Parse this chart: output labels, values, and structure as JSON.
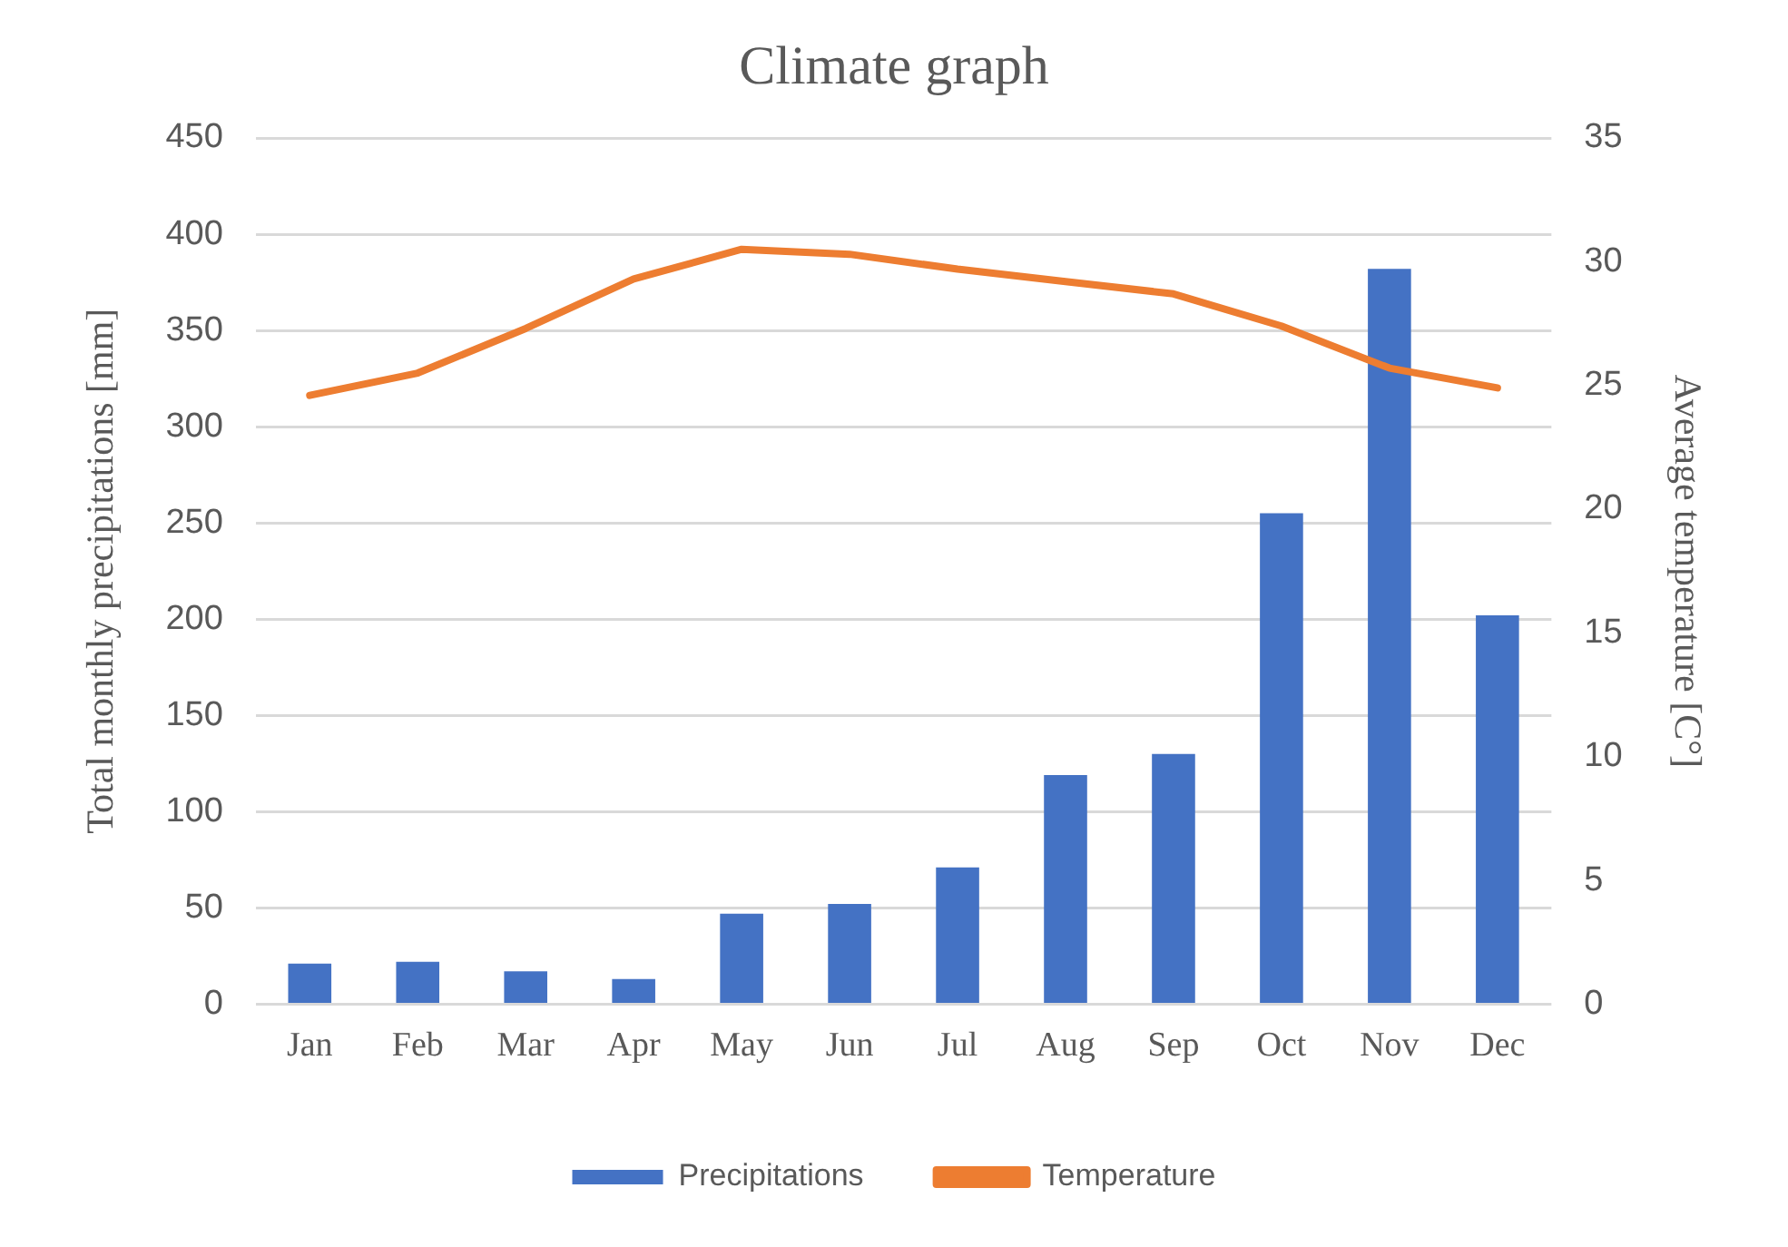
{
  "chart_data": {
    "type": "bar",
    "title": "Climate graph",
    "ylabel": "Total monthly precipitations [mm]",
    "y2label": "Average temperature [C°]",
    "categories": [
      "Jan",
      "Feb",
      "Mar",
      "Apr",
      "May",
      "Jun",
      "Jul",
      "Aug",
      "Sep",
      "Oct",
      "Nov",
      "Dec"
    ],
    "series": [
      {
        "name": "Precipitations",
        "color": "#4472c4",
        "values": [
          21,
          22,
          17,
          13,
          47,
          52,
          71,
          119,
          130,
          255,
          382,
          202
        ]
      },
      {
        "name": "Temperature",
        "type": "line",
        "axis": "y2",
        "color": "#ed7d31",
        "values": [
          24.6,
          25.5,
          27.3,
          29.3,
          30.5,
          30.3,
          29.7,
          29.2,
          28.7,
          27.4,
          25.7,
          24.9
        ]
      }
    ],
    "ylim": [
      0,
      450
    ],
    "yticks": [
      0,
      50,
      100,
      150,
      200,
      250,
      300,
      350,
      400,
      450
    ],
    "y2lim": [
      0,
      35
    ],
    "y2ticks": [
      0,
      5,
      10,
      15,
      20,
      25,
      30,
      35
    ],
    "grid": "y",
    "legend": "bottom",
    "marker": "none"
  }
}
